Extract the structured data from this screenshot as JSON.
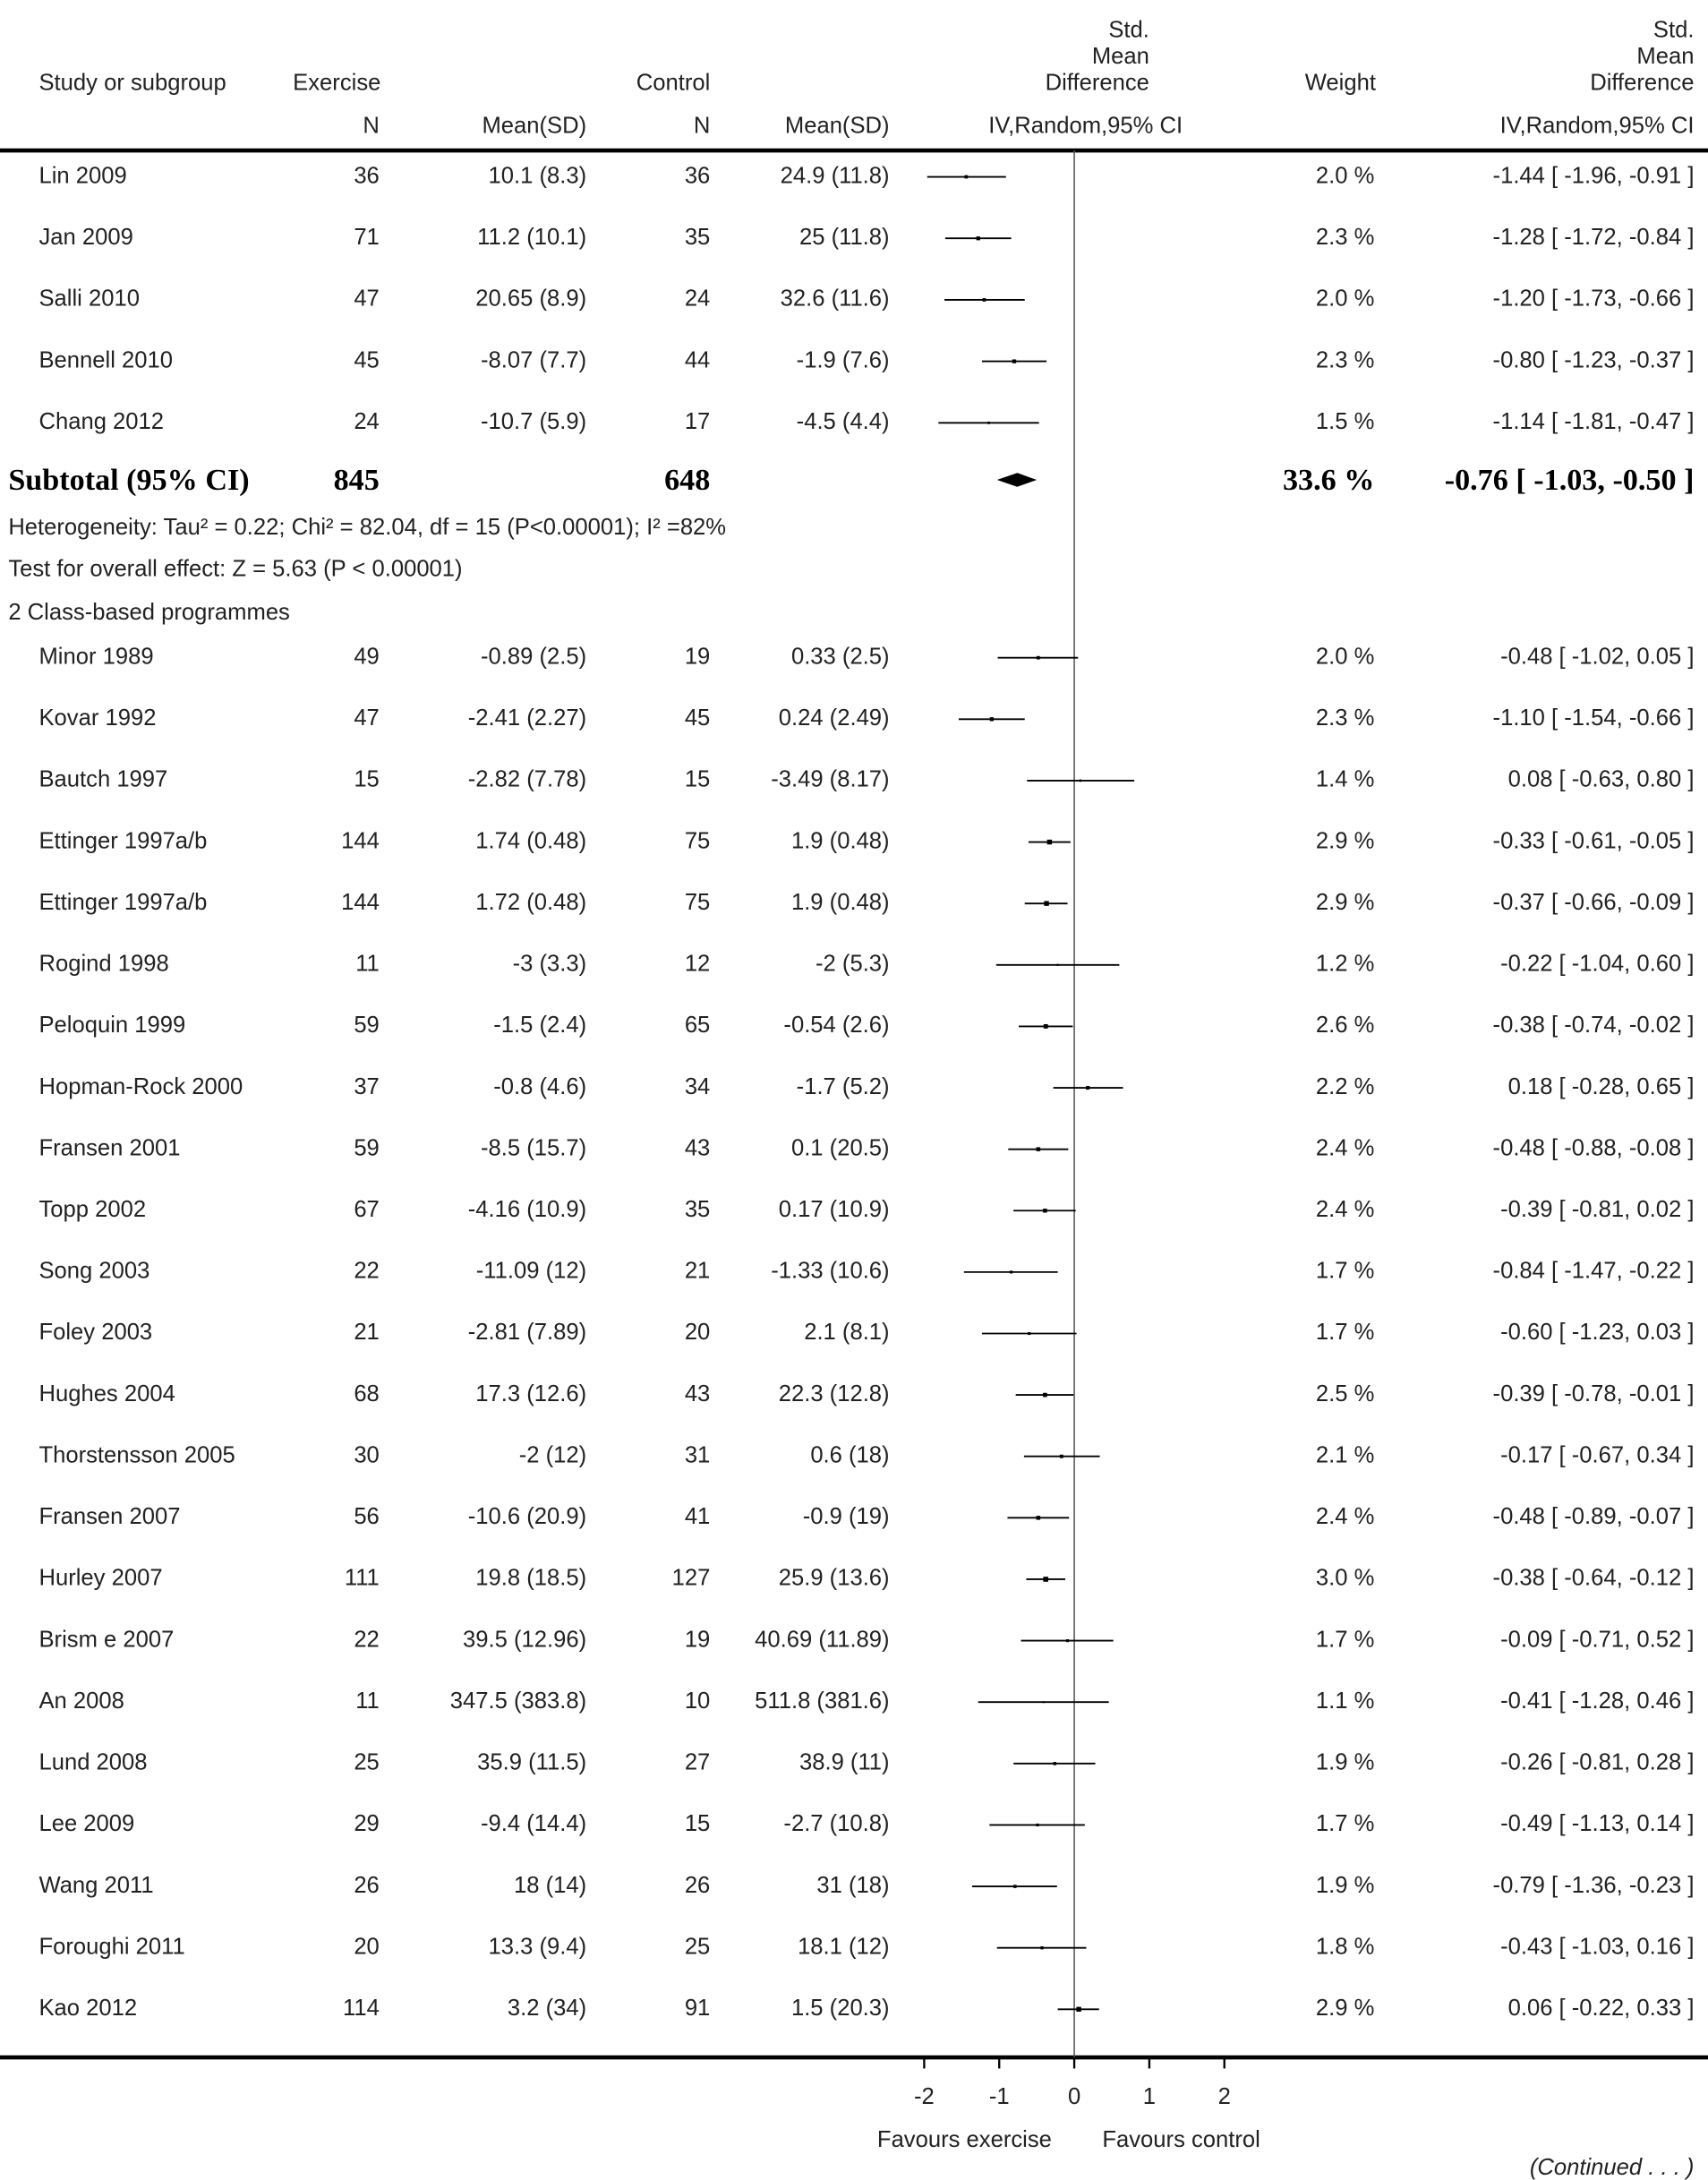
{
  "header": {
    "study": "Study or subgroup",
    "exercise": "Exercise",
    "control": "Control",
    "smd_plot": [
      "Std.",
      "Mean",
      "Difference"
    ],
    "weight": "Weight",
    "smd": [
      "Std.",
      "Mean",
      "Difference"
    ],
    "n": "N",
    "mean_sd": "Mean(SD)",
    "ci_plot": "IV,Random,95% CI",
    "ci": "IV,Random,95% CI"
  },
  "group1": {
    "rows": [
      {
        "study": "Lin 2009",
        "exercise_n": 36,
        "exercise_mean_sd": "10.1 (8.3)",
        "control_n": 36,
        "control_mean_sd": "24.9 (11.8)",
        "weight": {
          "value": 2.0,
          "label": "2.0 %"
        },
        "effect": {
          "value": -1.44,
          "low": -1.96,
          "high": -0.91,
          "label": "-1.44 [ -1.96, -0.91 ]"
        }
      },
      {
        "study": "Jan 2009",
        "exercise_n": 71,
        "exercise_mean_sd": "11.2 (10.1)",
        "control_n": 35,
        "control_mean_sd": "25 (11.8)",
        "weight": {
          "value": 2.3,
          "label": "2.3 %"
        },
        "effect": {
          "value": -1.28,
          "low": -1.72,
          "high": -0.84,
          "label": "-1.28 [ -1.72, -0.84 ]"
        }
      },
      {
        "study": "Salli 2010",
        "exercise_n": 47,
        "exercise_mean_sd": "20.65 (8.9)",
        "control_n": 24,
        "control_mean_sd": "32.6 (11.6)",
        "weight": {
          "value": 2.0,
          "label": "2.0 %"
        },
        "effect": {
          "value": -1.2,
          "low": -1.73,
          "high": -0.66,
          "label": "-1.20 [ -1.73, -0.66 ]"
        }
      },
      {
        "study": "Bennell 2010",
        "exercise_n": 45,
        "exercise_mean_sd": "-8.07 (7.7)",
        "control_n": 44,
        "control_mean_sd": "-1.9 (7.6)",
        "weight": {
          "value": 2.3,
          "label": "2.3 %"
        },
        "effect": {
          "value": -0.8,
          "low": -1.23,
          "high": -0.37,
          "label": "-0.80 [ -1.23, -0.37 ]"
        }
      },
      {
        "study": "Chang 2012",
        "exercise_n": 24,
        "exercise_mean_sd": "-10.7 (5.9)",
        "control_n": 17,
        "control_mean_sd": "-4.5 (4.4)",
        "weight": {
          "value": 1.5,
          "label": "1.5 %"
        },
        "effect": {
          "value": -1.14,
          "low": -1.81,
          "high": -0.47,
          "label": "-1.14 [ -1.81, -0.47 ]"
        }
      }
    ],
    "subtotal": {
      "study": "Subtotal (95% CI)",
      "exercise_n": 845,
      "control_n": 648,
      "weight": {
        "value": 33.6,
        "label": "33.6 %"
      },
      "effect": {
        "value": -0.76,
        "low": -1.03,
        "high": -0.5,
        "label": "-0.76 [ -1.03, -0.50 ]"
      }
    },
    "heterogeneity": "Heterogeneity: Tau² = 0.22; Chi² = 82.04, df = 15 (P<0.00001); I² =82%",
    "overall_effect": "Test for overall effect: Z = 5.63 (P < 0.00001)"
  },
  "group2": {
    "title": "2 Class-based programmes",
    "rows": [
      {
        "study": "Minor 1989",
        "exercise_n": 49,
        "exercise_mean_sd": "-0.89 (2.5)",
        "control_n": 19,
        "control_mean_sd": "0.33 (2.5)",
        "weight": {
          "value": 2.0,
          "label": "2.0 %"
        },
        "effect": {
          "value": -0.48,
          "low": -1.02,
          "high": 0.05,
          "label": "-0.48 [ -1.02, 0.05 ]"
        }
      },
      {
        "study": "Kovar 1992",
        "exercise_n": 47,
        "exercise_mean_sd": "-2.41 (2.27)",
        "control_n": 45,
        "control_mean_sd": "0.24 (2.49)",
        "weight": {
          "value": 2.3,
          "label": "2.3 %"
        },
        "effect": {
          "value": -1.1,
          "low": -1.54,
          "high": -0.66,
          "label": "-1.10 [ -1.54, -0.66 ]"
        }
      },
      {
        "study": "Bautch 1997",
        "exercise_n": 15,
        "exercise_mean_sd": "-2.82 (7.78)",
        "control_n": 15,
        "control_mean_sd": "-3.49 (8.17)",
        "weight": {
          "value": 1.4,
          "label": "1.4 %"
        },
        "effect": {
          "value": 0.08,
          "low": -0.63,
          "high": 0.8,
          "label": "0.08 [ -0.63, 0.80 ]"
        }
      },
      {
        "study": "Ettinger 1997a/b",
        "exercise_n": 144,
        "exercise_mean_sd": "1.74 (0.48)",
        "control_n": 75,
        "control_mean_sd": "1.9 (0.48)",
        "weight": {
          "value": 2.9,
          "label": "2.9 %"
        },
        "effect": {
          "value": -0.33,
          "low": -0.61,
          "high": -0.05,
          "label": "-0.33 [ -0.61, -0.05 ]"
        }
      },
      {
        "study": "Ettinger 1997a/b",
        "exercise_n": 144,
        "exercise_mean_sd": "1.72 (0.48)",
        "control_n": 75,
        "control_mean_sd": "1.9 (0.48)",
        "weight": {
          "value": 2.9,
          "label": "2.9 %"
        },
        "effect": {
          "value": -0.37,
          "low": -0.66,
          "high": -0.09,
          "label": "-0.37 [ -0.66, -0.09 ]"
        }
      },
      {
        "study": "Rogind 1998",
        "exercise_n": 11,
        "exercise_mean_sd": "-3 (3.3)",
        "control_n": 12,
        "control_mean_sd": "-2 (5.3)",
        "weight": {
          "value": 1.2,
          "label": "1.2 %"
        },
        "effect": {
          "value": -0.22,
          "low": -1.04,
          "high": 0.6,
          "label": "-0.22 [ -1.04, 0.60 ]"
        }
      },
      {
        "study": "Peloquin 1999",
        "exercise_n": 59,
        "exercise_mean_sd": "-1.5 (2.4)",
        "control_n": 65,
        "control_mean_sd": "-0.54 (2.6)",
        "weight": {
          "value": 2.6,
          "label": "2.6 %"
        },
        "effect": {
          "value": -0.38,
          "low": -0.74,
          "high": -0.02,
          "label": "-0.38 [ -0.74, -0.02 ]"
        }
      },
      {
        "study": "Hopman-Rock 2000",
        "exercise_n": 37,
        "exercise_mean_sd": "-0.8 (4.6)",
        "control_n": 34,
        "control_mean_sd": "-1.7 (5.2)",
        "weight": {
          "value": 2.2,
          "label": "2.2 %"
        },
        "effect": {
          "value": 0.18,
          "low": -0.28,
          "high": 0.65,
          "label": "0.18 [ -0.28, 0.65 ]"
        }
      },
      {
        "study": "Fransen 2001",
        "exercise_n": 59,
        "exercise_mean_sd": "-8.5 (15.7)",
        "control_n": 43,
        "control_mean_sd": "0.1 (20.5)",
        "weight": {
          "value": 2.4,
          "label": "2.4 %"
        },
        "effect": {
          "value": -0.48,
          "low": -0.88,
          "high": -0.08,
          "label": "-0.48 [ -0.88, -0.08 ]"
        }
      },
      {
        "study": "Topp 2002",
        "exercise_n": 67,
        "exercise_mean_sd": "-4.16 (10.9)",
        "control_n": 35,
        "control_mean_sd": "0.17 (10.9)",
        "weight": {
          "value": 2.4,
          "label": "2.4 %"
        },
        "effect": {
          "value": -0.39,
          "low": -0.81,
          "high": 0.02,
          "label": "-0.39 [ -0.81, 0.02 ]"
        }
      },
      {
        "study": "Song 2003",
        "exercise_n": 22,
        "exercise_mean_sd": "-11.09 (12)",
        "control_n": 21,
        "control_mean_sd": "-1.33 (10.6)",
        "weight": {
          "value": 1.7,
          "label": "1.7 %"
        },
        "effect": {
          "value": -0.84,
          "low": -1.47,
          "high": -0.22,
          "label": "-0.84 [ -1.47, -0.22 ]"
        }
      },
      {
        "study": "Foley 2003",
        "exercise_n": 21,
        "exercise_mean_sd": "-2.81 (7.89)",
        "control_n": 20,
        "control_mean_sd": "2.1 (8.1)",
        "weight": {
          "value": 1.7,
          "label": "1.7 %"
        },
        "effect": {
          "value": -0.6,
          "low": -1.23,
          "high": 0.03,
          "label": "-0.60 [ -1.23, 0.03 ]"
        }
      },
      {
        "study": "Hughes 2004",
        "exercise_n": 68,
        "exercise_mean_sd": "17.3 (12.6)",
        "control_n": 43,
        "control_mean_sd": "22.3 (12.8)",
        "weight": {
          "value": 2.5,
          "label": "2.5 %"
        },
        "effect": {
          "value": -0.39,
          "low": -0.78,
          "high": -0.01,
          "label": "-0.39 [ -0.78, -0.01 ]"
        }
      },
      {
        "study": "Thorstensson 2005",
        "exercise_n": 30,
        "exercise_mean_sd": "-2 (12)",
        "control_n": 31,
        "control_mean_sd": "0.6 (18)",
        "weight": {
          "value": 2.1,
          "label": "2.1 %"
        },
        "effect": {
          "value": -0.17,
          "low": -0.67,
          "high": 0.34,
          "label": "-0.17 [ -0.67, 0.34 ]"
        }
      },
      {
        "study": "Fransen 2007",
        "exercise_n": 56,
        "exercise_mean_sd": "-10.6 (20.9)",
        "control_n": 41,
        "control_mean_sd": "-0.9 (19)",
        "weight": {
          "value": 2.4,
          "label": "2.4 %"
        },
        "effect": {
          "value": -0.48,
          "low": -0.89,
          "high": -0.07,
          "label": "-0.48 [ -0.89, -0.07 ]"
        }
      },
      {
        "study": "Hurley 2007",
        "exercise_n": 111,
        "exercise_mean_sd": "19.8 (18.5)",
        "control_n": 127,
        "control_mean_sd": "25.9 (13.6)",
        "weight": {
          "value": 3.0,
          "label": "3.0 %"
        },
        "effect": {
          "value": -0.38,
          "low": -0.64,
          "high": -0.12,
          "label": "-0.38 [ -0.64, -0.12 ]"
        }
      },
      {
        "study": "Brism   e 2007",
        "exercise_n": 22,
        "exercise_mean_sd": "39.5 (12.96)",
        "control_n": 19,
        "control_mean_sd": "40.69 (11.89)",
        "weight": {
          "value": 1.7,
          "label": "1.7 %"
        },
        "effect": {
          "value": -0.09,
          "low": -0.71,
          "high": 0.52,
          "label": "-0.09 [ -0.71, 0.52 ]"
        }
      },
      {
        "study": "An 2008",
        "exercise_n": 11,
        "exercise_mean_sd": "347.5 (383.8)",
        "control_n": 10,
        "control_mean_sd": "511.8 (381.6)",
        "weight": {
          "value": 1.1,
          "label": "1.1 %"
        },
        "effect": {
          "value": -0.41,
          "low": -1.28,
          "high": 0.46,
          "label": "-0.41 [ -1.28, 0.46 ]"
        }
      },
      {
        "study": "Lund 2008",
        "exercise_n": 25,
        "exercise_mean_sd": "35.9 (11.5)",
        "control_n": 27,
        "control_mean_sd": "38.9 (11)",
        "weight": {
          "value": 1.9,
          "label": "1.9 %"
        },
        "effect": {
          "value": -0.26,
          "low": -0.81,
          "high": 0.28,
          "label": "-0.26 [ -0.81, 0.28 ]"
        }
      },
      {
        "study": "Lee 2009",
        "exercise_n": 29,
        "exercise_mean_sd": "-9.4 (14.4)",
        "control_n": 15,
        "control_mean_sd": "-2.7 (10.8)",
        "weight": {
          "value": 1.7,
          "label": "1.7 %"
        },
        "effect": {
          "value": -0.49,
          "low": -1.13,
          "high": 0.14,
          "label": "-0.49 [ -1.13, 0.14 ]"
        }
      },
      {
        "study": "Wang 2011",
        "exercise_n": 26,
        "exercise_mean_sd": "18 (14)",
        "control_n": 26,
        "control_mean_sd": "31 (18)",
        "weight": {
          "value": 1.9,
          "label": "1.9 %"
        },
        "effect": {
          "value": -0.79,
          "low": -1.36,
          "high": -0.23,
          "label": "-0.79 [ -1.36, -0.23 ]"
        }
      },
      {
        "study": "Foroughi 2011",
        "exercise_n": 20,
        "exercise_mean_sd": "13.3 (9.4)",
        "control_n": 25,
        "control_mean_sd": "18.1 (12)",
        "weight": {
          "value": 1.8,
          "label": "1.8 %"
        },
        "effect": {
          "value": -0.43,
          "low": -1.03,
          "high": 0.16,
          "label": "-0.43 [ -1.03, 0.16 ]"
        }
      },
      {
        "study": "Kao 2012",
        "exercise_n": 114,
        "exercise_mean_sd": "3.2 (34)",
        "control_n": 91,
        "control_mean_sd": "1.5 (20.3)",
        "weight": {
          "value": 2.9,
          "label": "2.9 %"
        },
        "effect": {
          "value": 0.06,
          "low": -0.22,
          "high": 0.33,
          "label": "0.06 [ -0.22, 0.33 ]"
        }
      }
    ]
  },
  "axis": {
    "xlim": [
      -2,
      2
    ],
    "xticks": [
      -2,
      -1,
      0,
      1,
      2
    ],
    "left_label": "Favours exercise",
    "right_label": "Favours control"
  },
  "footer": "(Continued . . . )"
}
